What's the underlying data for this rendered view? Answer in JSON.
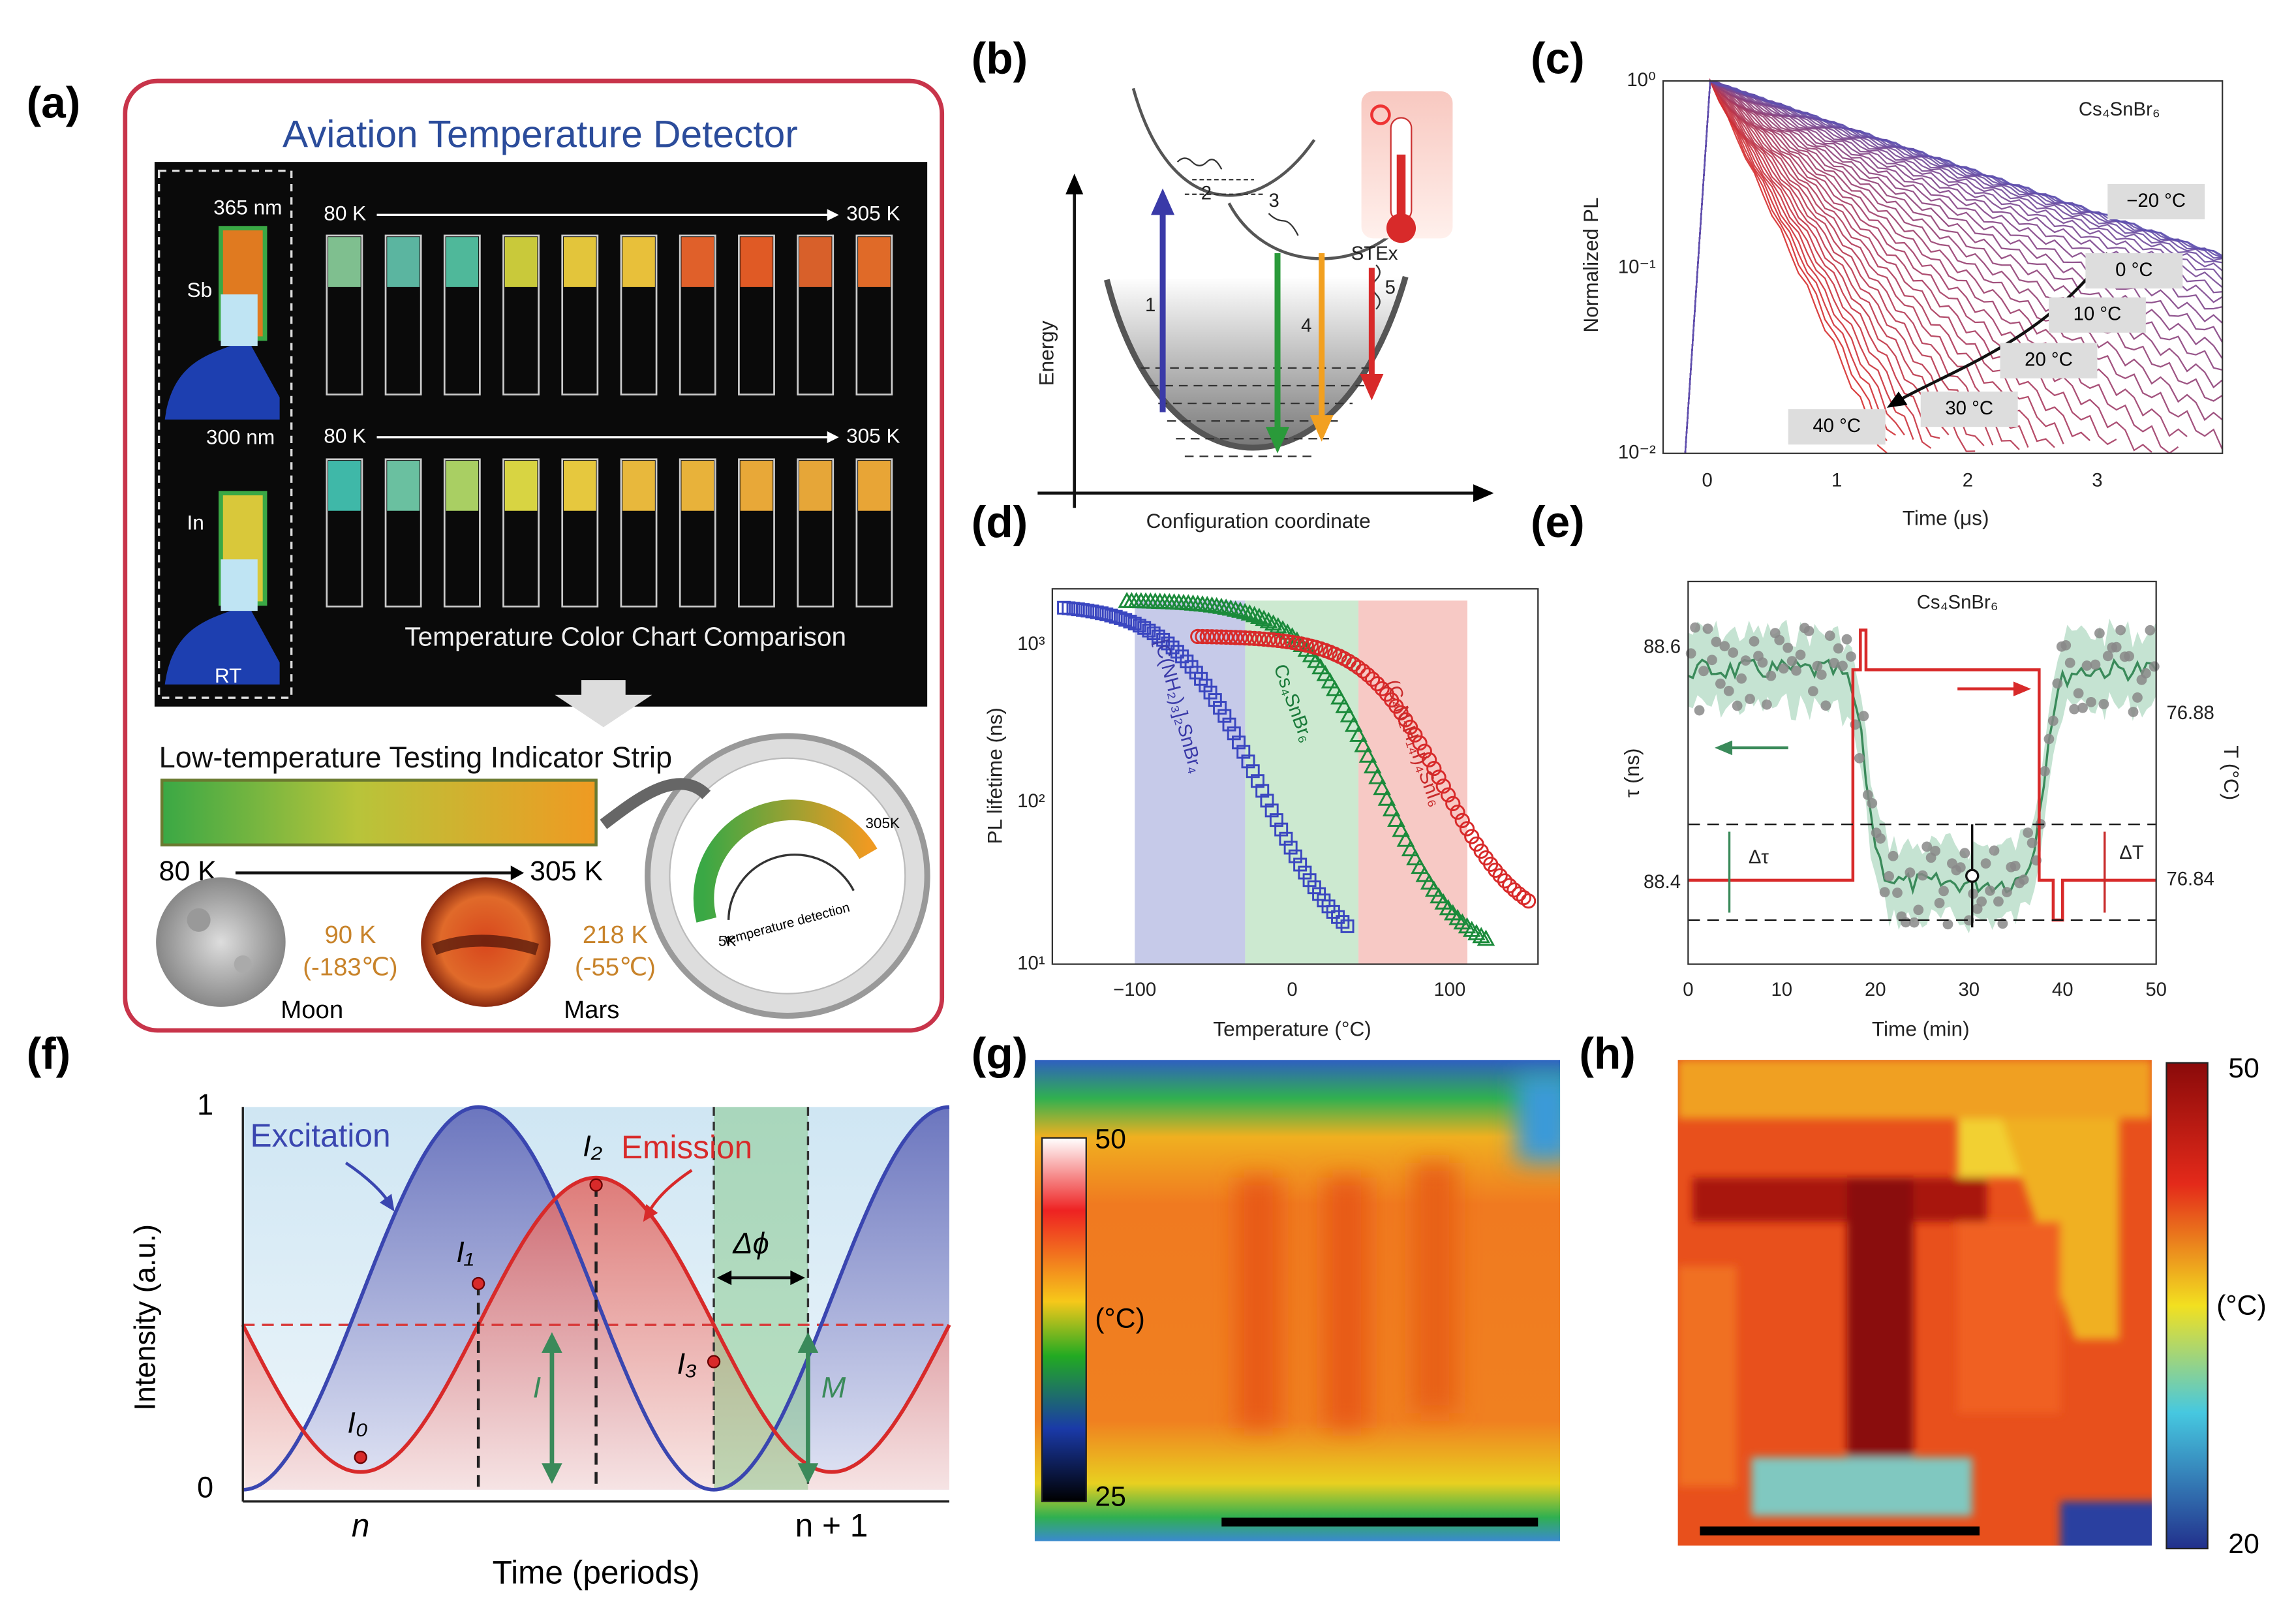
{
  "panels": {
    "a": {
      "label": "(a)",
      "title": "Aviation Temperature Detector",
      "sb_wavelength": "365 nm",
      "sb": "Sb",
      "in_wavelength": "300 nm",
      "in": "In",
      "rt": "RT",
      "row1_start": "80 K",
      "row1_end": "305 K",
      "row2_start": "80 K",
      "row2_end": "305 K",
      "chart_caption": "Temperature Color Chart Comparison",
      "strip_title": "Low-temperature Testing Indicator Strip",
      "strip_start": "80 K",
      "strip_end": "305 K",
      "moon_temp": "90 K",
      "moon_celsius": "(-183℃)",
      "moon": "Moon",
      "mars_temp": "218 K",
      "mars_celsius": "(-55℃)",
      "mars": "Mars",
      "gauge_min": "5K",
      "gauge_max": "305K",
      "gauge_text": "temperature detection"
    },
    "b": {
      "label": "(b)",
      "y_axis": "Energy",
      "x_axis": "Configuration coordinate",
      "steps": [
        "1",
        "2",
        "3",
        "4",
        "5"
      ],
      "state": "STEx"
    },
    "c": {
      "label": "(c)",
      "material": "Cs₄SnBr₆",
      "y_axis": "Normalized PL",
      "x_axis": "Time (μs)",
      "yticks": [
        "10⁰",
        "10⁻¹",
        "10⁻²"
      ],
      "xticks": [
        "0",
        "1",
        "2",
        "3"
      ],
      "temperatures": [
        "−20 °C",
        "0 °C",
        "10 °C",
        "20 °C",
        "30 °C",
        "40 °C"
      ]
    },
    "d": {
      "label": "(d)",
      "y_axis": "PL lifetime (ns)",
      "x_axis": "Temperature (°C)",
      "yticks": [
        "10³",
        "10²",
        "10¹"
      ],
      "xticks": [
        "−100",
        "0",
        "100"
      ],
      "materials": [
        "[C(NH₂)₃]₂SnBr₄",
        "Cs₄SnBr₆",
        "(C₄N₂H₁₄I)₄SnI₆"
      ]
    },
    "e": {
      "label": "(e)",
      "material": "Cs₄SnBr₆",
      "y_axis": "τ (ns)",
      "y2_axis": "T (°C)",
      "x_axis": "Time (min)",
      "yticks": [
        "88.6",
        "88.4"
      ],
      "y2ticks": [
        "76.88",
        "76.84"
      ],
      "xticks": [
        "0",
        "10",
        "20",
        "30",
        "40",
        "50"
      ],
      "delta_tau": "Δτ",
      "delta_t": "ΔT"
    },
    "f": {
      "label": "(f)",
      "excitation": "Excitation",
      "emission": "Emission",
      "points": [
        "I₀",
        "I₁",
        "I₂",
        "I₃"
      ],
      "phase": "Δϕ",
      "i": "I",
      "m": "M",
      "yticks": [
        "1",
        "0"
      ],
      "xticks": [
        "n",
        "n + 1"
      ],
      "x_axis": "Time (periods)",
      "y_axis": "Intensity (a.u.)"
    },
    "g": {
      "label": "(g)",
      "max": "50",
      "unit": "(°C)",
      "min": "25"
    },
    "h": {
      "label": "(h)",
      "max": "50",
      "unit": "(°C)",
      "min": "20"
    }
  }
}
